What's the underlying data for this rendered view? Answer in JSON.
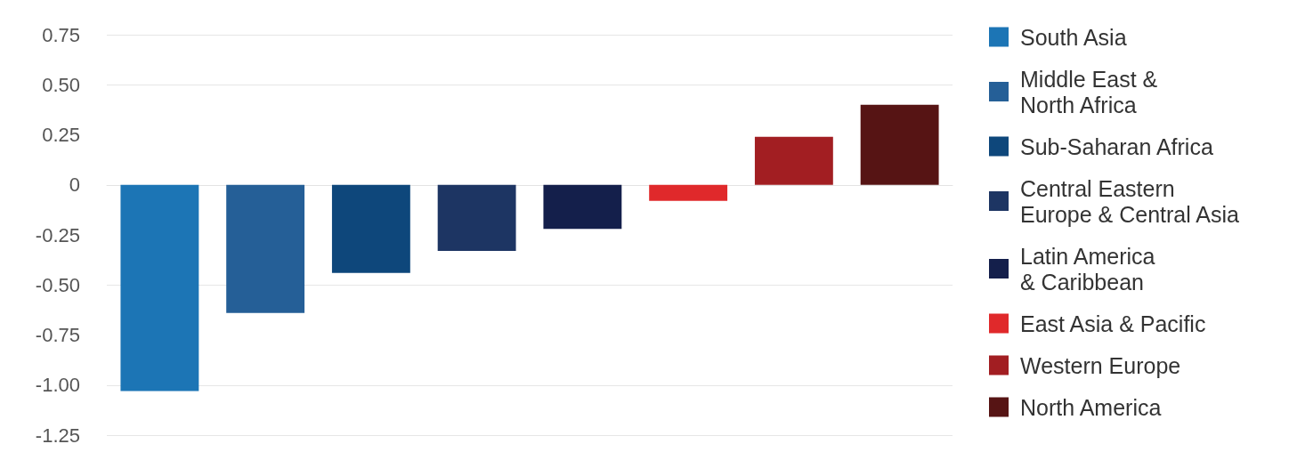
{
  "chart_data": {
    "type": "bar",
    "categories": [
      null,
      null,
      null,
      null,
      null,
      null,
      null,
      null
    ],
    "series": [
      {
        "name": "South Asia",
        "color": "#1c75b5",
        "values": [
          -1.03,
          null,
          null,
          null,
          null,
          null,
          null,
          null
        ]
      },
      {
        "name": "Middle East &\nNorth Africa",
        "color": "#255f97",
        "values": [
          null,
          -0.64,
          null,
          null,
          null,
          null,
          null,
          null
        ]
      },
      {
        "name": "Sub-Saharan Africa",
        "color": "#0e477b",
        "values": [
          null,
          null,
          -0.44,
          null,
          null,
          null,
          null,
          null
        ]
      },
      {
        "name": "Central Eastern\nEurope & Central Asia",
        "color": "#1d3563",
        "values": [
          null,
          null,
          null,
          -0.33,
          null,
          null,
          null,
          null
        ]
      },
      {
        "name": "Latin America\n& Caribbean",
        "color": "#141f4b",
        "values": [
          null,
          null,
          null,
          null,
          -0.22,
          null,
          null,
          null
        ]
      },
      {
        "name": "East Asia & Pacific",
        "color": "#e0292b",
        "values": [
          null,
          null,
          null,
          null,
          null,
          -0.08,
          null,
          null
        ]
      },
      {
        "name": "Western Europe",
        "color": "#a21e22",
        "values": [
          null,
          null,
          null,
          null,
          null,
          null,
          0.24,
          null
        ]
      },
      {
        "name": "North America",
        "color": "#561414",
        "values": [
          null,
          null,
          null,
          null,
          null,
          null,
          null,
          0.4
        ]
      }
    ],
    "ylim": [
      -1.25,
      0.75
    ],
    "yticks": [
      0.75,
      "0.50",
      0.25,
      0,
      -0.25,
      "-0.50",
      -0.75,
      "-1.00",
      -1.25
    ],
    "grid": "y",
    "legend": "right"
  }
}
